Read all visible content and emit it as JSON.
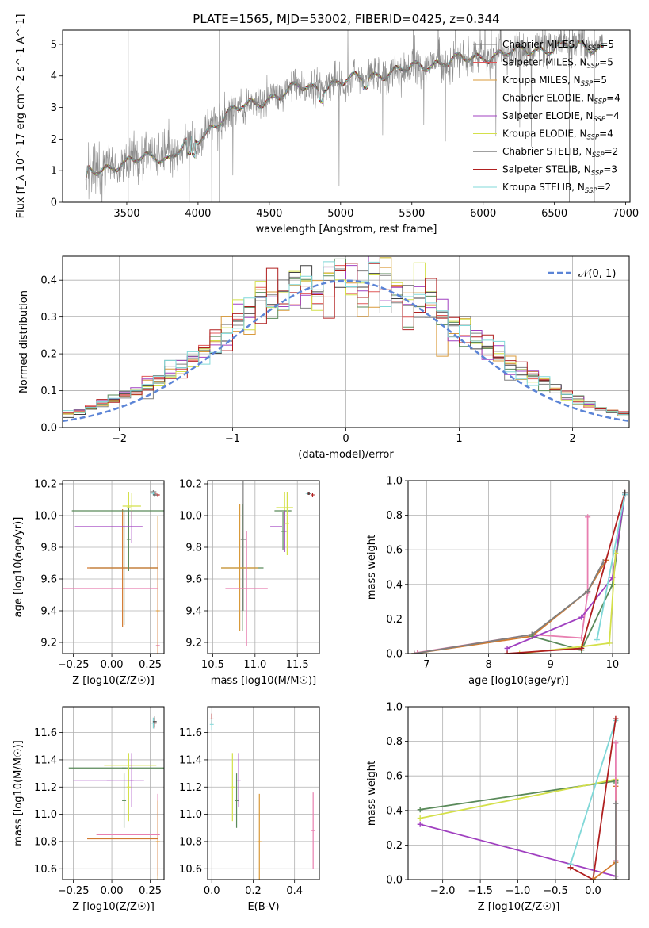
{
  "figure_title": "PLATE=1565, MJD=53002, FIBERID=0425, z=0.344",
  "chart_data": [
    {
      "type": "line",
      "xlabel": "wavelength [Angstrom, rest frame]",
      "ylabel": "Flux [f_λ 10^-17 erg cm^-2 s^-1 A^-1]",
      "xlim": [
        3050,
        7030
      ],
      "ylim": [
        0,
        5.45
      ],
      "xticks": [
        3500,
        4000,
        4500,
        5000,
        5500,
        6000,
        6500,
        7000
      ],
      "yticks": [
        0,
        1,
        2,
        3,
        4,
        5
      ],
      "grid": false,
      "legend_position": "top-right",
      "flux_shape": [
        [
          3210,
          0.5
        ],
        [
          3230,
          1.0
        ],
        [
          3350,
          1.1
        ],
        [
          3500,
          1.2
        ],
        [
          3600,
          1.4
        ],
        [
          3700,
          1.5
        ],
        [
          3800,
          1.35
        ],
        [
          3900,
          1.8
        ],
        [
          4000,
          1.95
        ],
        [
          4100,
          2.4
        ],
        [
          4200,
          2.8
        ],
        [
          4300,
          3.0
        ],
        [
          4400,
          3.1
        ],
        [
          4500,
          3.3
        ],
        [
          4600,
          3.45
        ],
        [
          4700,
          3.65
        ],
        [
          4800,
          3.6
        ],
        [
          5000,
          3.8
        ],
        [
          5200,
          4.0
        ],
        [
          5400,
          4.15
        ],
        [
          5600,
          4.35
        ],
        [
          5800,
          4.5
        ],
        [
          6000,
          4.6
        ],
        [
          6200,
          4.75
        ],
        [
          6400,
          4.85
        ],
        [
          6600,
          4.95
        ],
        [
          6850,
          4.9
        ]
      ],
      "series": [
        {
          "name": "Chabrier MILES, N",
          "sub": "SSP",
          "suffix": "=5",
          "color": "#808080"
        },
        {
          "name": "Salpeter MILES, N",
          "sub": "SSP",
          "suffix": "=5",
          "color": "#e05858"
        },
        {
          "name": "Kroupa MILES, N",
          "sub": "SSP",
          "suffix": "=5",
          "color": "#d99a3a"
        },
        {
          "name": "Chabrier ELODIE, N",
          "sub": "SSP",
          "suffix": "=4",
          "color": "#5a8a5a"
        },
        {
          "name": "Salpeter ELODIE, N",
          "sub": "SSP",
          "suffix": "=4",
          "color": "#a040c0"
        },
        {
          "name": "Kroupa ELODIE, N",
          "sub": "SSP",
          "suffix": "=4",
          "color": "#d4e04a"
        },
        {
          "name": "Chabrier STELIB, N",
          "sub": "SSP",
          "suffix": "=2",
          "color": "#404040"
        },
        {
          "name": "Salpeter STELIB, N",
          "sub": "SSP",
          "suffix": "=3",
          "color": "#b02020"
        },
        {
          "name": "Kroupa STELIB, N",
          "sub": "SSP",
          "suffix": "=2",
          "color": "#80d8d8"
        }
      ]
    },
    {
      "type": "line",
      "xlabel": "(data-model)/error",
      "ylabel": "Normed distribution",
      "xlim": [
        -2.5,
        2.5
      ],
      "ylim": [
        0,
        0.465
      ],
      "xticks": [
        -2,
        -1,
        0,
        1,
        2
      ],
      "yticks": [
        0.0,
        0.1,
        0.2,
        0.3,
        0.4
      ],
      "grid": true,
      "legend_position": "top-right",
      "reference_curve": {
        "label": "𝒩(0, 1)",
        "mean": 0,
        "sigma": 1,
        "color": "#5b84d6"
      },
      "histogram_bin_width": 0.1,
      "histogram_colors": [
        "#808080",
        "#e05858",
        "#d99a3a",
        "#5a8a5a",
        "#a040c0",
        "#d4e04a",
        "#404040",
        "#b02020",
        "#80d8d8"
      ]
    },
    {
      "type": "scatter",
      "xlabel": "Z [log10(Z/Z☉)]",
      "ylabel": "age [log10(age/yr)]",
      "xlim": [
        -0.32,
        0.34
      ],
      "ylim": [
        9.13,
        10.22
      ],
      "xticks": [
        -0.25,
        0.0,
        0.25
      ],
      "yticks": [
        9.2,
        9.4,
        9.6,
        9.8,
        10.0,
        10.2
      ],
      "grid": true,
      "points": [
        {
          "x": 0.27,
          "xerr": 0.02,
          "y": 10.15,
          "yerr": 0.01,
          "color": "#808080"
        },
        {
          "x": 0.3,
          "xerr": 0.01,
          "y": 9.18,
          "yerr": 0.63,
          "color": "#e060a0"
        },
        {
          "x": 0.3,
          "xerr": 0.005,
          "y": 9.4,
          "yerr": 0.6,
          "color": "#d99a3a"
        },
        {
          "x": -0.1,
          "xerr": 0.4,
          "y": 9.54,
          "yerr": 0.0,
          "color": "#e87fb0"
        },
        {
          "x": 0.08,
          "xerr": 0.22,
          "y": 9.67,
          "yerr": 0.36,
          "color": "#5a8a5a"
        },
        {
          "x": 0.07,
          "xerr": 0.23,
          "y": 9.67,
          "yerr": 0.37,
          "color": "#d27a30"
        },
        {
          "x": 0.06,
          "xerr": 0.32,
          "y": 10.03,
          "yerr": 0.0,
          "color": "#5a8a5a"
        },
        {
          "x": 0.11,
          "xerr": 0.01,
          "y": 10.05,
          "yerr": 0.1,
          "color": "#d4e04a"
        },
        {
          "x": 0.11,
          "xerr": 0.0,
          "y": 9.85,
          "yerr": 0.2,
          "color": "#5a8a5a"
        },
        {
          "x": 0.13,
          "xerr": 0.06,
          "y": 10.06,
          "yerr": 0.08,
          "color": "#d4e04a"
        },
        {
          "x": -0.02,
          "xerr": 0.22,
          "y": 9.93,
          "yerr": 0.0,
          "color": "#a040c0"
        },
        {
          "x": 0.13,
          "xerr": 0.0,
          "y": 9.93,
          "yerr": 0.1,
          "color": "#a040c0"
        },
        {
          "x": 0.28,
          "xerr": 0.01,
          "y": 10.14,
          "yerr": 0.01,
          "color": "#b02020"
        },
        {
          "x": 0.3,
          "xerr": 0.01,
          "y": 10.13,
          "yerr": 0.01,
          "color": "#b02020"
        },
        {
          "x": 0.27,
          "xerr": 0.01,
          "y": 10.14,
          "yerr": 0.01,
          "color": "#80d8d8"
        },
        {
          "x": 0.28,
          "xerr": 0.01,
          "y": 10.13,
          "yerr": 0.01,
          "color": "#404040"
        }
      ]
    },
    {
      "type": "scatter",
      "xlabel": "mass [log10(M/M☉)]",
      "ylabel": "",
      "xlim": [
        10.44,
        11.76
      ],
      "ylim": [
        9.13,
        10.22
      ],
      "xticks": [
        10.5,
        11.0,
        11.5
      ],
      "yticks": [
        9.2,
        9.4,
        9.6,
        9.8,
        10.0,
        10.2
      ],
      "grid": true,
      "points": [
        {
          "x": 10.86,
          "xerr": 0.03,
          "y": 9.85,
          "yerr": 0.45,
          "color": "#808080"
        },
        {
          "x": 10.85,
          "xerr": 0.25,
          "y": 9.67,
          "yerr": 0.4,
          "color": "#5a8a5a"
        },
        {
          "x": 10.82,
          "xerr": 0.22,
          "y": 9.67,
          "yerr": 0.4,
          "color": "#d99a3a"
        },
        {
          "x": 10.9,
          "xerr": 0.25,
          "y": 9.54,
          "yerr": 0.36,
          "color": "#e87fb0"
        },
        {
          "x": 11.35,
          "xerr": 0.1,
          "y": 10.05,
          "yerr": 0.1,
          "color": "#d4e04a"
        },
        {
          "x": 11.33,
          "xerr": 0.1,
          "y": 10.03,
          "yerr": 0.0,
          "color": "#5a8a5a"
        },
        {
          "x": 11.25,
          "xerr": 0.07,
          "y": 9.93,
          "yerr": 0.0,
          "color": "#a040c0"
        },
        {
          "x": 11.35,
          "xerr": 0.0,
          "y": 9.9,
          "yerr": 0.13,
          "color": "#a040c0"
        },
        {
          "x": 11.33,
          "xerr": 0.0,
          "y": 9.9,
          "yerr": 0.12,
          "color": "#5a8a5a"
        },
        {
          "x": 11.38,
          "xerr": 0.0,
          "y": 9.95,
          "yerr": 0.2,
          "color": "#d4e04a"
        },
        {
          "x": 11.63,
          "xerr": 0.02,
          "y": 10.14,
          "yerr": 0.01,
          "color": "#b02020"
        },
        {
          "x": 11.68,
          "xerr": 0.01,
          "y": 10.13,
          "yerr": 0.01,
          "color": "#b02020"
        },
        {
          "x": 11.62,
          "xerr": 0.02,
          "y": 10.14,
          "yerr": 0.01,
          "color": "#80d8d8"
        },
        {
          "x": 11.64,
          "xerr": 0.02,
          "y": 10.14,
          "yerr": 0.01,
          "color": "#404040"
        }
      ]
    },
    {
      "type": "line",
      "xlabel": "age [log10(age/yr)]",
      "ylabel": "mass weight",
      "xlim": [
        6.7,
        10.27
      ],
      "ylim": [
        0,
        1.0
      ],
      "xticks": [
        7,
        8,
        9,
        10
      ],
      "yticks": [
        0.0,
        0.2,
        0.4,
        0.6,
        0.8,
        1.0
      ],
      "grid": true,
      "series": [
        {
          "color": "#e87fb0",
          "x": [
            6.85,
            8.7,
            9.5,
            9.6,
            9.6
          ],
          "y": [
            0.005,
            0.11,
            0.09,
            0.35,
            0.79
          ]
        },
        {
          "color": "#d27a30",
          "x": [
            6.8,
            8.7,
            9.6,
            9.9
          ],
          "y": [
            0.0,
            0.1,
            0.36,
            0.54
          ]
        },
        {
          "color": "#808080",
          "x": [
            6.8,
            8.7,
            9.6,
            9.85
          ],
          "y": [
            0.0,
            0.11,
            0.36,
            0.53
          ]
        },
        {
          "color": "#5a8a5a",
          "x": [
            8.7,
            9.5,
            10.0,
            10.2
          ],
          "y": [
            0.1,
            0.02,
            0.4,
            0.92
          ]
        },
        {
          "color": "#a040c0",
          "x": [
            8.3,
            9.5,
            10.0,
            10.2
          ],
          "y": [
            0.03,
            0.21,
            0.44,
            0.92
          ]
        },
        {
          "color": "#d4e04a",
          "x": [
            8.5,
            9.5,
            9.95,
            10.05
          ],
          "y": [
            0.0,
            0.04,
            0.06,
            0.58
          ]
        },
        {
          "color": "#b02020",
          "x": [
            8.3,
            9.5,
            10.2
          ],
          "y": [
            0.0,
            0.03,
            0.93
          ]
        },
        {
          "color": "#80d8d8",
          "x": [
            9.75,
            10.2
          ],
          "y": [
            0.08,
            0.92
          ]
        },
        {
          "color": "#404040",
          "x": [
            10.2
          ],
          "y": [
            0.93
          ]
        }
      ]
    },
    {
      "type": "scatter",
      "xlabel": "Z [log10(Z/Z☉)]",
      "ylabel": "mass [log10(M/M☉)]",
      "xlim": [
        -0.32,
        0.34
      ],
      "ylim": [
        10.52,
        11.79
      ],
      "xticks": [
        -0.25,
        0.0,
        0.25
      ],
      "yticks": [
        10.6,
        10.8,
        11.0,
        11.2,
        11.4,
        11.6
      ],
      "grid": true,
      "points": [
        {
          "x": 0.3,
          "xerr": 0.0,
          "y": 10.85,
          "yerr": 0.3,
          "color": "#e060a0"
        },
        {
          "x": 0.3,
          "xerr": 0.0,
          "y": 10.8,
          "yerr": 0.3,
          "color": "#d99a3a"
        },
        {
          "x": 0.07,
          "xerr": 0.23,
          "y": 10.82,
          "yerr": 0.0,
          "color": "#d27a30"
        },
        {
          "x": 0.1,
          "xerr": 0.2,
          "y": 10.85,
          "yerr": 0.0,
          "color": "#e87fb0"
        },
        {
          "x": 0.08,
          "xerr": 0.36,
          "y": 11.34,
          "yerr": 0.0,
          "color": "#5a8a5a"
        },
        {
          "x": 0.08,
          "xerr": 0.0,
          "y": 11.1,
          "yerr": 0.2,
          "color": "#5a8a5a"
        },
        {
          "x": 0.12,
          "xerr": 0.17,
          "y": 11.36,
          "yerr": 0.0,
          "color": "#d4e04a"
        },
        {
          "x": 0.11,
          "xerr": 0.0,
          "y": 11.2,
          "yerr": 0.25,
          "color": "#d4e04a"
        },
        {
          "x": -0.02,
          "xerr": 0.23,
          "y": 11.25,
          "yerr": 0.0,
          "color": "#a040c0"
        },
        {
          "x": 0.13,
          "xerr": 0.0,
          "y": 11.25,
          "yerr": 0.2,
          "color": "#a040c0"
        },
        {
          "x": 0.28,
          "xerr": 0.01,
          "y": 11.67,
          "yerr": 0.04,
          "color": "#b02020"
        },
        {
          "x": 0.27,
          "xerr": 0.01,
          "y": 11.67,
          "yerr": 0.04,
          "color": "#80d8d8"
        },
        {
          "x": 0.28,
          "xerr": 0.01,
          "y": 11.68,
          "yerr": 0.04,
          "color": "#404040"
        }
      ]
    },
    {
      "type": "scatter",
      "xlabel": "E(B-V)",
      "ylabel": "",
      "xlim": [
        -0.02,
        0.52
      ],
      "ylim": [
        10.52,
        11.79
      ],
      "xticks": [
        0.0,
        0.2,
        0.4
      ],
      "yticks": [
        10.6,
        10.8,
        11.0,
        11.2,
        11.4,
        11.6
      ],
      "grid": true,
      "points": [
        {
          "x": 0.0,
          "y": 11.7,
          "yerr": 0.04,
          "color": "#b02020"
        },
        {
          "x": 0.0,
          "y": 11.66,
          "yerr": 0.04,
          "color": "#80d8d8"
        },
        {
          "x": 0.1,
          "y": 11.2,
          "yerr": 0.25,
          "color": "#d4e04a"
        },
        {
          "x": 0.12,
          "y": 11.1,
          "yerr": 0.2,
          "color": "#5a8a5a"
        },
        {
          "x": 0.13,
          "y": 11.25,
          "yerr": 0.2,
          "color": "#a040c0"
        },
        {
          "x": 0.23,
          "y": 10.8,
          "yerr": 0.35,
          "color": "#d99a3a"
        },
        {
          "x": 0.49,
          "y": 10.88,
          "yerr": 0.28,
          "color": "#e87fb0"
        }
      ]
    },
    {
      "type": "line",
      "xlabel": "Z [log10(Z/Z☉)]",
      "ylabel": "mass weight",
      "xlim": [
        -2.46,
        0.48
      ],
      "ylim": [
        0,
        1.0
      ],
      "xticks": [
        -2.0,
        -1.5,
        -1.0,
        -0.5,
        0.0
      ],
      "yticks": [
        0.0,
        0.2,
        0.4,
        0.6,
        0.8,
        1.0
      ],
      "grid": true,
      "series": [
        {
          "color": "#5a8a5a",
          "x": [
            -2.3,
            0.3,
            0.3
          ],
          "y": [
            0.405,
            0.57,
            0.56
          ]
        },
        {
          "color": "#d4e04a",
          "x": [
            -2.3,
            0.3,
            0.3
          ],
          "y": [
            0.355,
            0.58,
            0.0
          ]
        },
        {
          "color": "#a040c0",
          "x": [
            -2.3,
            0.3
          ],
          "y": [
            0.32,
            0.02
          ]
        },
        {
          "color": "#80d8d8",
          "x": [
            -0.3,
            0.3
          ],
          "y": [
            0.09,
            0.92
          ]
        },
        {
          "color": "#b02020",
          "x": [
            -0.3,
            0.0,
            0.3
          ],
          "y": [
            0.07,
            0.0,
            0.93
          ]
        },
        {
          "color": "#d27a30",
          "x": [
            0.0,
            0.3,
            0.3
          ],
          "y": [
            0.0,
            0.1,
            0.54
          ]
        },
        {
          "color": "#e87fb0",
          "x": [
            0.3,
            0.3
          ],
          "y": [
            0.11,
            0.79
          ]
        },
        {
          "color": "#808080",
          "x": [
            0.3,
            0.3
          ],
          "y": [
            0.0,
            0.44
          ]
        }
      ]
    }
  ]
}
